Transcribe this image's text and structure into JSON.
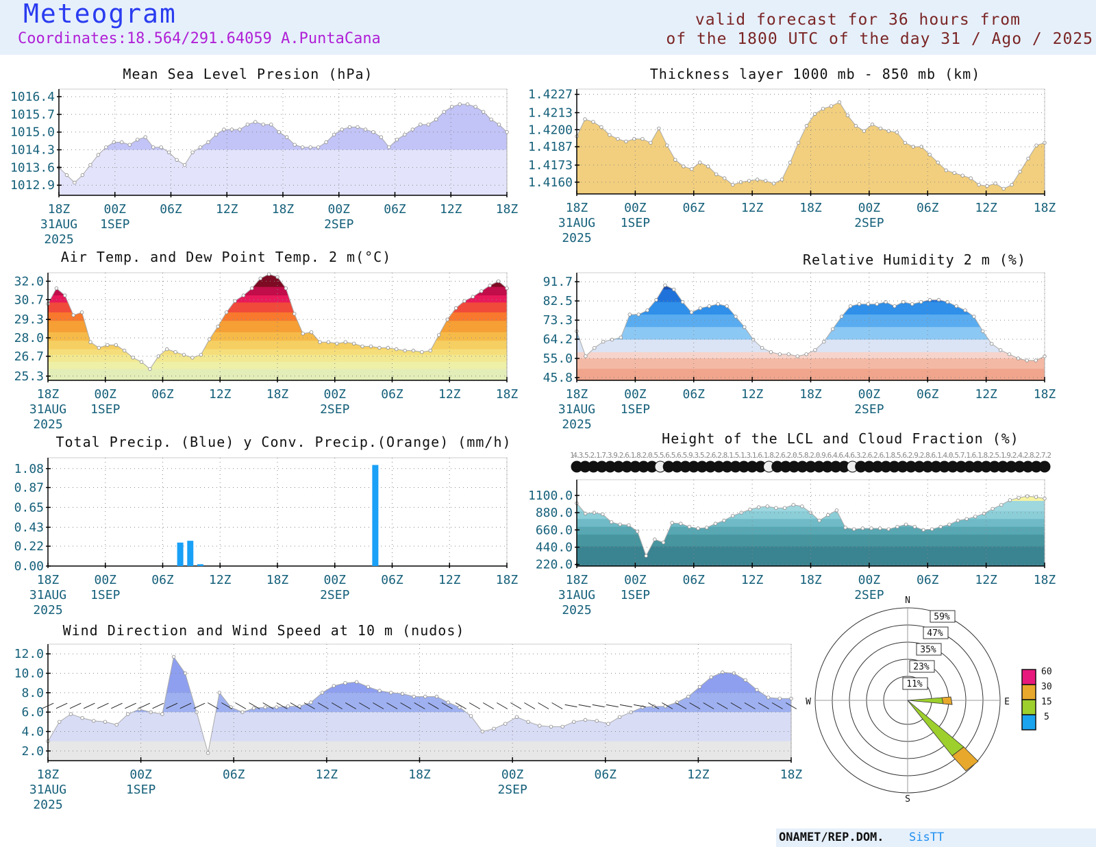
{
  "header": {
    "title": "Meteogram",
    "coordinates": "Coordinates:18.564/291.64059  A.PuntaCana",
    "valid_line1": "valid forecast for 36 hours from",
    "valid_line2": "of the 1800 UTC of the day 31 / Ago / 2025"
  },
  "footer": {
    "agency": "ONAMET/REP.DOM.",
    "system": "SisTT"
  },
  "colors": {
    "pressure": "#c4c6f7",
    "thickness": "#f2cf7e",
    "humidity_blue": "#2f8ee8",
    "humidity_pink": "#f4b9a5",
    "temp_hot": "#e2185e",
    "temp_mid": "#f67e2e",
    "temp_cool": "#f0e79c",
    "precip": "#19a0f7",
    "lcl": "#3f9aa6",
    "wind": "#93a4f0",
    "tick": "#15607a"
  },
  "time_axis": {
    "labels": [
      "18Z",
      "00Z",
      "06Z",
      "12Z",
      "18Z",
      "00Z",
      "06Z",
      "12Z",
      "18Z"
    ],
    "dates": [
      {
        "pos": 0,
        "lines": [
          "31AUG",
          "2025"
        ]
      },
      {
        "pos": 1,
        "lines": [
          "1SEP"
        ]
      },
      {
        "pos": 5,
        "lines": [
          "2SEP"
        ]
      }
    ]
  },
  "chart_data": [
    {
      "id": "pressure",
      "type": "area",
      "title": "Mean Sea Level Presion (hPa)",
      "yticks": [
        "1016.4",
        "1015.7",
        "1015.0",
        "1014.3",
        "1013.6",
        "1012.9"
      ],
      "ylim": [
        1012.5,
        1016.7
      ],
      "values": [
        1013.6,
        1013.3,
        1013.0,
        1013.3,
        1013.7,
        1014.1,
        1014.4,
        1014.6,
        1014.6,
        1014.5,
        1014.7,
        1014.8,
        1014.4,
        1014.4,
        1014.2,
        1013.9,
        1013.7,
        1014.2,
        1014.4,
        1014.6,
        1014.9,
        1015.1,
        1015.1,
        1015.1,
        1015.3,
        1015.4,
        1015.3,
        1015.3,
        1015.0,
        1014.8,
        1014.5,
        1014.4,
        1014.4,
        1014.4,
        1014.6,
        1014.9,
        1015.1,
        1015.2,
        1015.2,
        1015.1,
        1015.0,
        1014.8,
        1014.4,
        1014.7,
        1014.9,
        1015.1,
        1015.3,
        1015.3,
        1015.5,
        1015.8,
        1016.0,
        1016.1,
        1016.1,
        1016.0,
        1015.8,
        1015.5,
        1015.3,
        1015.0
      ]
    },
    {
      "id": "thickness",
      "type": "area",
      "title": "Thickness layer 1000 mb - 850 mb (km)",
      "yticks": [
        "1.4227",
        "1.4213",
        "1.4200",
        "1.4187",
        "1.4173",
        "1.4160"
      ],
      "ylim": [
        1.4151,
        1.4231
      ],
      "values": [
        1.4195,
        1.4208,
        1.4206,
        1.4202,
        1.4196,
        1.4193,
        1.4191,
        1.4193,
        1.4193,
        1.419,
        1.4201,
        1.4188,
        1.4177,
        1.4172,
        1.417,
        1.4175,
        1.4172,
        1.4166,
        1.4163,
        1.4158,
        1.416,
        1.4161,
        1.4162,
        1.4161,
        1.4159,
        1.4162,
        1.4175,
        1.419,
        1.4203,
        1.4212,
        1.4216,
        1.4218,
        1.4221,
        1.4211,
        1.4203,
        1.4199,
        1.4204,
        1.4201,
        1.4199,
        1.4198,
        1.419,
        1.4187,
        1.4187,
        1.4181,
        1.4175,
        1.4169,
        1.4167,
        1.4165,
        1.4163,
        1.4158,
        1.4157,
        1.4159,
        1.4155,
        1.4158,
        1.4168,
        1.4178,
        1.4188,
        1.419
      ]
    },
    {
      "id": "temperature",
      "type": "area",
      "title": "Air Temp. and Dew Point Temp. 2 m(°C)",
      "yticks": [
        "32.0",
        "30.7",
        "29.3",
        "28.0",
        "26.7",
        "25.3"
      ],
      "ylim": [
        25.0,
        32.6
      ],
      "values": [
        30.4,
        31.5,
        31.0,
        29.6,
        29.8,
        27.7,
        27.3,
        27.5,
        27.5,
        27.1,
        26.6,
        26.3,
        25.8,
        26.7,
        27.2,
        27.0,
        26.8,
        26.6,
        26.8,
        27.9,
        28.8,
        29.8,
        30.6,
        31.0,
        31.5,
        32.2,
        32.5,
        32.3,
        31.5,
        29.7,
        28.3,
        28.4,
        27.7,
        27.7,
        27.6,
        27.7,
        27.6,
        27.4,
        27.4,
        27.3,
        27.3,
        27.2,
        27.1,
        27.1,
        27.0,
        27.1,
        28.2,
        29.3,
        30.1,
        30.6,
        30.9,
        31.3,
        31.7,
        32.0,
        31.5
      ]
    },
    {
      "id": "humidity",
      "type": "area",
      "title": "Relative Humidity 2 m (%)",
      "yticks": [
        "91.7",
        "82.5",
        "73.3",
        "64.2",
        "55.0",
        "45.8"
      ],
      "ylim": [
        44.5,
        96.0
      ],
      "values": [
        68.0,
        56.0,
        60.0,
        63.0,
        64.0,
        65.0,
        76.0,
        76.0,
        78.0,
        83.0,
        90.0,
        88.0,
        82.0,
        77.0,
        79.0,
        80.0,
        81.0,
        80.0,
        75.0,
        70.0,
        64.0,
        60.0,
        58.0,
        57.0,
        57.0,
        56.0,
        57.0,
        59.0,
        63.0,
        69.0,
        75.0,
        80.0,
        81.0,
        81.0,
        81.0,
        82.0,
        80.0,
        82.0,
        81.0,
        82.0,
        83.0,
        83.0,
        82.0,
        80.0,
        78.0,
        75.0,
        68.0,
        62.0,
        59.0,
        57.0,
        55.0,
        54.0,
        54.0,
        56.0
      ]
    },
    {
      "id": "precip",
      "type": "bar",
      "title": "Total Precip. (Blue) y Conv. Precip.(Orange) (mm/h)",
      "yticks": [
        "1.08",
        "0.87",
        "0.65",
        "0.43",
        "0.22",
        "0.00"
      ],
      "ylim": [
        0,
        1.2
      ],
      "bars": [
        {
          "t": 4.6,
          "v": 0.26
        },
        {
          "t": 4.95,
          "v": 0.28
        },
        {
          "t": 5.3,
          "v": 0.02
        },
        {
          "t": 11.4,
          "v": 1.12
        }
      ]
    },
    {
      "id": "lcl",
      "type": "area",
      "title": "Height of the LCL and Cloud Fraction (%)",
      "yticks": [
        "1100.0",
        "880.0",
        "660.0",
        "440.0",
        "220.0"
      ],
      "ylim": [
        200,
        1300
      ],
      "cloud_labels": "14.3.5.2.1.7.3.9.2.6.1.8.2.0.5.5.6.5.6.5.9.3.5.2.6.2.8.1.5.1.3.1.6.1.8.2.6.2.0.5.8.2.0.9.6.4.6.4.6.3.2.6.2.6.1.8.5.6.2.9.2.8.6.1.4.0.5.7.1.6.1.8.2.5.1.9.2.4.2.8.2.7.2",
      "values": [
        1000,
        870,
        880,
        860,
        760,
        730,
        720,
        640,
        330,
        540,
        500,
        750,
        740,
        700,
        680,
        690,
        740,
        780,
        840,
        880,
        920,
        950,
        960,
        940,
        940,
        980,
        960,
        880,
        780,
        850,
        910,
        690,
        670,
        680,
        680,
        680,
        670,
        700,
        730,
        700,
        660,
        670,
        700,
        730,
        780,
        800,
        830,
        870,
        930,
        980,
        1040,
        1070,
        1090,
        1080,
        1060
      ]
    },
    {
      "id": "wind",
      "type": "area",
      "title": "Wind Direction and Wind Speed at 10 m (nudos)",
      "yticks": [
        "12.0",
        "10.0",
        "8.0",
        "6.0",
        "4.0",
        "2.0"
      ],
      "ylim": [
        1.0,
        13.0
      ],
      "values": [
        3.0,
        5.0,
        5.8,
        5.4,
        5.1,
        5.0,
        4.7,
        5.8,
        6.3,
        6.0,
        5.8,
        11.7,
        10.0,
        6.0,
        1.8,
        8.0,
        6.5,
        6.0,
        6.4,
        6.5,
        6.5,
        6.6,
        6.6,
        7.0,
        8.0,
        8.7,
        9.0,
        9.1,
        8.6,
        8.2,
        8.0,
        7.9,
        7.6,
        7.6,
        7.6,
        7.0,
        6.5,
        5.6,
        4.0,
        4.3,
        4.8,
        5.5,
        5.0,
        4.6,
        4.5,
        4.5,
        5.0,
        5.2,
        5.1,
        4.8,
        5.5,
        6.0,
        6.5,
        6.6,
        6.6,
        7.0,
        7.6,
        8.6,
        9.6,
        10.1,
        10.0,
        9.3,
        8.3,
        7.5,
        7.4,
        7.4
      ]
    },
    {
      "id": "windrose",
      "type": "polar",
      "compass": [
        "N",
        "E",
        "S",
        "W"
      ],
      "ring_labels": [
        "59%",
        "47%",
        "35%",
        "23%",
        "11%"
      ],
      "legend": [
        "60",
        "30",
        "15",
        "5"
      ],
      "legend_colors": [
        "#e8197c",
        "#e7a82c",
        "#9dcf2d",
        "#1aa3ee"
      ]
    }
  ]
}
